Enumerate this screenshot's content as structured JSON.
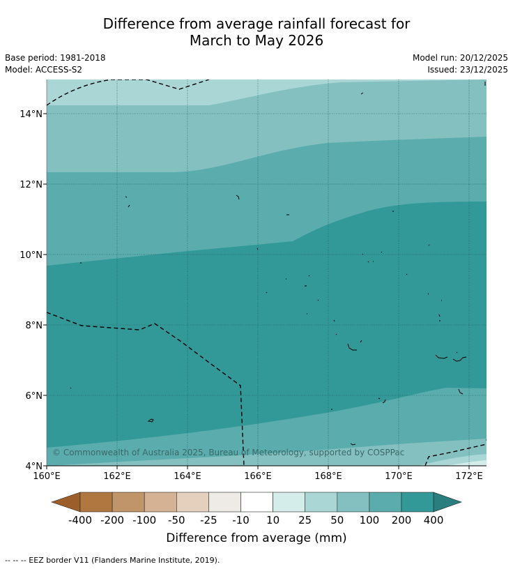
{
  "title": {
    "line1": "Difference from average rainfall forecast for",
    "line2": "March to May 2026"
  },
  "metadata": {
    "base_period": "Base period: 1981-2018",
    "model": "Model: ACCESS-S2",
    "model_run": "Model run: 20/12/2025",
    "issued": "Issued: 23/12/2025"
  },
  "map": {
    "longitude_labels": [
      "160°E",
      "162°E",
      "164°E",
      "166°E",
      "168°E",
      "170°E",
      "172°E"
    ],
    "latitude_labels": [
      "4°N",
      "6°N",
      "8°N",
      "10°N",
      "12°N",
      "14°N"
    ],
    "copyright": "© Commonwealth of Australia 2025, Bureau of Meteorology, supported by COSPPac",
    "colors": {
      "band_10_25": "#d4ecea",
      "band_25_50": "#aad6d6",
      "band_50_100": "#84c0c0",
      "band_100_200": "#5aacad",
      "band_200_400": "#339998"
    }
  },
  "colorbar": {
    "label": "Difference from average (mm)",
    "tick_labels": [
      "-400",
      "-200",
      "-100",
      "-50",
      "-25",
      "-10",
      "10",
      "25",
      "50",
      "100",
      "200",
      "400"
    ],
    "colors": [
      "#9c5f2b",
      "#b07740",
      "#c0956a",
      "#d4b293",
      "#e5d0bd",
      "#eeeae6",
      "#ffffff",
      "#d4ecea",
      "#aad6d6",
      "#84c0c0",
      "#5aacad",
      "#339998",
      "#2a7f7e"
    ]
  },
  "footnote": "--  --  -- EEZ border V11 (Flanders Marine Institute, 2019)."
}
